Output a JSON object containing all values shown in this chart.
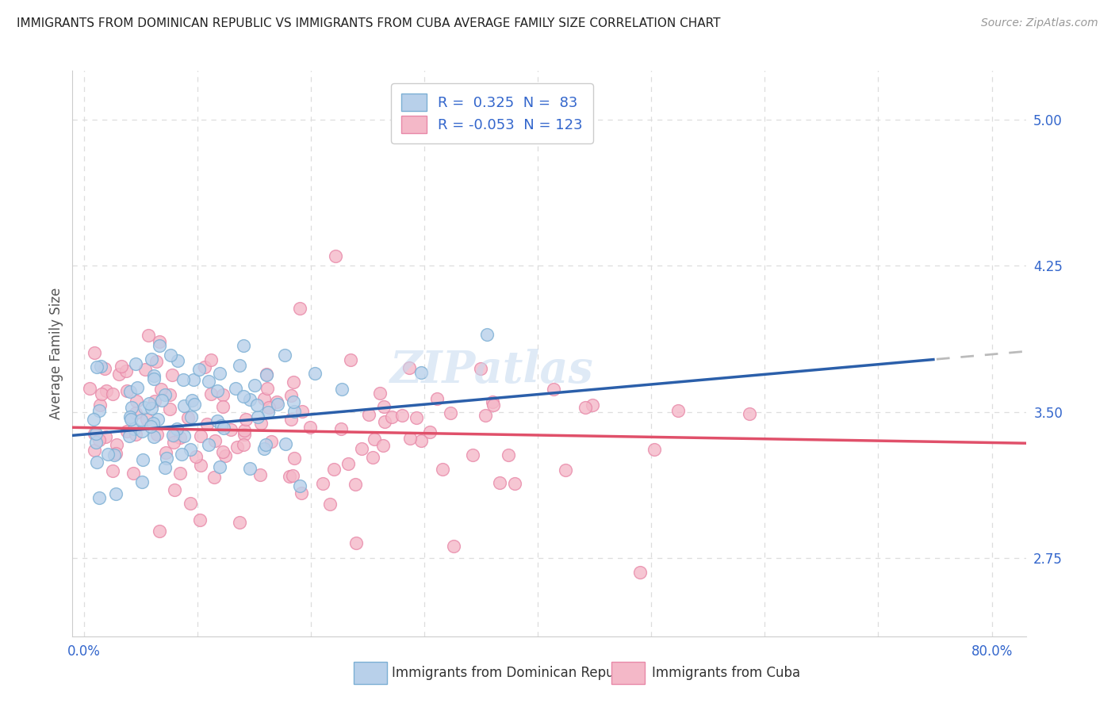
{
  "title": "IMMIGRANTS FROM DOMINICAN REPUBLIC VS IMMIGRANTS FROM CUBA AVERAGE FAMILY SIZE CORRELATION CHART",
  "source": "Source: ZipAtlas.com",
  "ylabel": "Average Family Size",
  "yticks": [
    2.75,
    3.5,
    4.25,
    5.0
  ],
  "ylim": [
    2.35,
    5.25
  ],
  "xlim": [
    -0.01,
    0.83
  ],
  "xtick_positions": [
    0.0,
    0.1,
    0.2,
    0.3,
    0.4,
    0.5,
    0.6,
    0.7,
    0.8
  ],
  "series1_color": "#b8d0ea",
  "series2_color": "#f4b8c8",
  "series1_edge": "#7bafd4",
  "series2_edge": "#e888a8",
  "trendline1_color": "#2b5faa",
  "trendline2_color": "#e0506a",
  "trendline1_dashed_color": "#bbbbbb",
  "background_color": "#ffffff",
  "grid_color": "#dddddd",
  "title_color": "#222222",
  "axis_color": "#3366cc",
  "watermark": "ZIPatlas",
  "r1": 0.325,
  "n1": 83,
  "r2": -0.053,
  "n2": 123,
  "trendline1_x0": 0.0,
  "trendline1_y0": 3.385,
  "trendline1_x1": 0.75,
  "trendline1_y1": 3.77,
  "trendline1_dash_x1": 0.83,
  "trendline1_dash_y1": 3.81,
  "trendline2_x0": 0.0,
  "trendline2_y0": 3.42,
  "trendline2_x1": 0.83,
  "trendline2_y1": 3.34
}
